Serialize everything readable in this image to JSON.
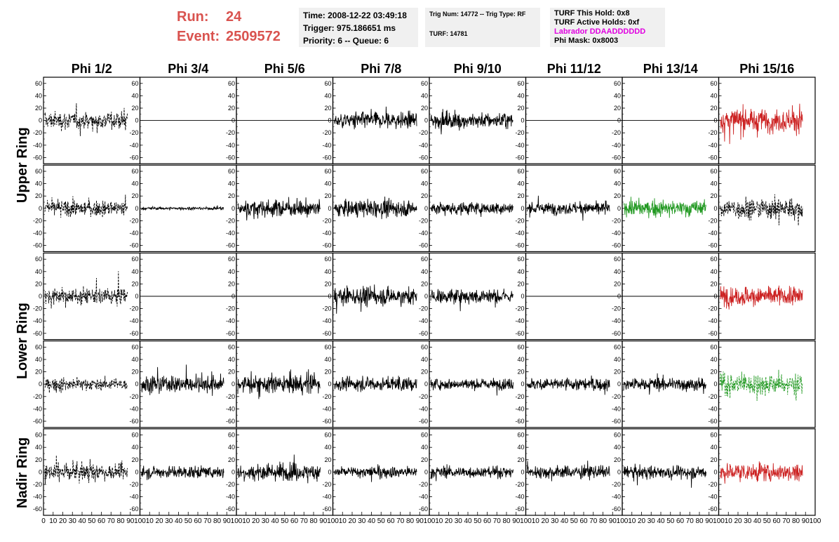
{
  "header": {
    "run_label": "Run:",
    "run_value": "24",
    "event_label": "Event:",
    "event_value": "2509572",
    "time": "Time: 2008-12-22 03:49:18",
    "trigger": "Trigger: 975.186651 ms",
    "priority": "Priority: 6 -- Queue: 6",
    "trig_num": "Trig Num: 14772 -- Trig Type: RF",
    "turf": "TURF: 14781",
    "turf_hold": "TURF This Hold: 0x8",
    "turf_active": "TURF Active Holds: 0xf",
    "labrador": "Labrador DDAADDDDDD",
    "phi_mask": "Phi Mask: 0x8003"
  },
  "colors": {
    "accent": "#d9534f",
    "magenta": "#e000e0",
    "red_trace": "#cc2222",
    "green_trace": "#229922",
    "panel_bg": "#f0f0f0"
  },
  "chart_data": {
    "type": "line",
    "columns": [
      "Phi 1/2",
      "Phi 3/4",
      "Phi 5/6",
      "Phi 7/8",
      "Phi 9/10",
      "Phi 11/12",
      "Phi 13/14",
      "Phi 15/16"
    ],
    "ring_labels": [
      "Upper Ring",
      "Lower Ring",
      "Nadir Ring"
    ],
    "ring_row_spans": [
      [
        0,
        1
      ],
      [
        2,
        3
      ],
      [
        4,
        4
      ]
    ],
    "xlim": [
      0,
      100
    ],
    "ylim": [
      -70,
      70
    ],
    "yticks": [
      -60,
      -40,
      -20,
      0,
      20,
      40,
      60
    ],
    "xticks": [
      0,
      10,
      20,
      30,
      40,
      50,
      60,
      70,
      80,
      90,
      100
    ],
    "panels": [
      [
        {
          "style": "dashed",
          "color": "black",
          "amp": 18
        },
        {
          "style": "flat",
          "color": "black",
          "amp": 0
        },
        {
          "style": "flat",
          "color": "black",
          "amp": 0
        },
        {
          "style": "solid",
          "color": "black",
          "amp": 17
        },
        {
          "style": "solid",
          "color": "black",
          "amp": 16
        },
        {
          "style": "flat",
          "color": "black",
          "amp": 0
        },
        {
          "style": "flat",
          "color": "black",
          "amp": 0
        },
        {
          "style": "solid",
          "color": "red",
          "amp": 24
        }
      ],
      [
        {
          "style": "dashed",
          "color": "black",
          "amp": 16
        },
        {
          "style": "solid",
          "color": "black",
          "amp": 3
        },
        {
          "style": "solid",
          "color": "black",
          "amp": 17
        },
        {
          "style": "solid",
          "color": "black",
          "amp": 17
        },
        {
          "style": "solid",
          "color": "black",
          "amp": 13
        },
        {
          "style": "solid",
          "color": "black",
          "amp": 12
        },
        {
          "style": "solid",
          "color": "green",
          "amp": 16
        },
        {
          "style": "dashed",
          "color": "black",
          "amp": 22
        }
      ],
      [
        {
          "style": "dashed",
          "color": "black",
          "amp": 16
        },
        {
          "style": "flat",
          "color": "black",
          "amp": 0
        },
        {
          "style": "flat",
          "color": "black",
          "amp": 0
        },
        {
          "style": "solid",
          "color": "black",
          "amp": 18
        },
        {
          "style": "solid",
          "color": "black",
          "amp": 15
        },
        {
          "style": "flat",
          "color": "black",
          "amp": 0
        },
        {
          "style": "flat",
          "color": "black",
          "amp": 0
        },
        {
          "style": "solid",
          "color": "red",
          "amp": 20
        }
      ],
      [
        {
          "style": "dashed",
          "color": "black",
          "amp": 12
        },
        {
          "style": "solid",
          "color": "black",
          "amp": 17
        },
        {
          "style": "solid",
          "color": "black",
          "amp": 19
        },
        {
          "style": "solid",
          "color": "black",
          "amp": 14
        },
        {
          "style": "solid",
          "color": "black",
          "amp": 11
        },
        {
          "style": "solid",
          "color": "black",
          "amp": 13
        },
        {
          "style": "solid",
          "color": "black",
          "amp": 13
        },
        {
          "style": "dashed",
          "color": "green",
          "amp": 22
        }
      ],
      [
        {
          "style": "dashed",
          "color": "black",
          "amp": 17
        },
        {
          "style": "solid",
          "color": "black",
          "amp": 12
        },
        {
          "style": "solid",
          "color": "black",
          "amp": 17
        },
        {
          "style": "solid",
          "color": "black",
          "amp": 12
        },
        {
          "style": "solid",
          "color": "black",
          "amp": 11
        },
        {
          "style": "solid",
          "color": "black",
          "amp": 13
        },
        {
          "style": "solid",
          "color": "black",
          "amp": 13
        },
        {
          "style": "solid",
          "color": "red",
          "amp": 19
        }
      ]
    ]
  }
}
